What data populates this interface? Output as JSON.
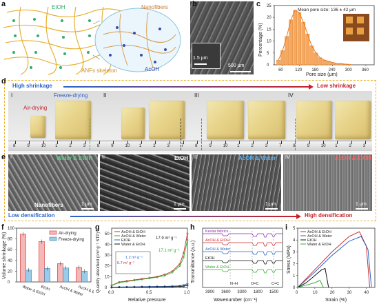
{
  "panels": {
    "a": {
      "label": "a",
      "etoh": "EtOH",
      "nanofibers": "Nanofibers",
      "skeleton": "ANFs skeleton",
      "acoh": "AcOH"
    },
    "b": {
      "label": "b",
      "inset_scale": "1.5 μm",
      "scale": "500 μm"
    },
    "c": {
      "label": "c",
      "title": "Mean pore size: 136 ± 42 μm",
      "ylabel": "Percentage (%)",
      "xlabel": "Pore size (μm)"
    },
    "d": {
      "label": "d",
      "high_shrinkage": "High shrinkage",
      "low_shrinkage": "Low shrinkage",
      "freeze": "Freeze-drying",
      "air": "Air-drying",
      "romans": [
        "I",
        "II",
        "III",
        "IV"
      ],
      "ruler_numbers": [
        "8",
        "9",
        "10",
        "1",
        "2",
        "3",
        "8",
        "9",
        "10",
        "1",
        "2",
        "3",
        "7",
        "8",
        "9",
        "10",
        "1",
        "2",
        "3",
        "7",
        "8",
        "9",
        "10",
        "1",
        "2",
        "3"
      ]
    },
    "e": {
      "label": "e",
      "tags": [
        "Water & EtOH",
        "EtOH",
        "AcOH & Water",
        "AcOH & EtOH"
      ],
      "romans": [
        "I",
        "II",
        "III",
        "IV"
      ],
      "nanofibers": "Nanofibers",
      "scale": "1 μm",
      "low_densification": "Low densification",
      "high_densification": "High densification"
    },
    "f": {
      "label": "f",
      "ylabel": "Volume shrinkage (%)",
      "legend": [
        "Air-drying",
        "Freeze-drying"
      ]
    },
    "g": {
      "label": "g",
      "ylabel": "Quantity absorbed (cm³ g⁻¹ STP)",
      "xlabel": "Relative pressure",
      "legend": [
        "AcOH & EtOH",
        "AcOH & Water",
        "EtOH",
        "Water & EtOH"
      ],
      "ann": [
        "17.9 m² g⁻¹",
        "17.1 m² g⁻¹",
        "1.2 m² g⁻¹",
        "0.7 m² g⁻¹"
      ]
    },
    "h": {
      "label": "h",
      "ylabel": "Transmittance (a.u.)",
      "xlabel": "Wavenumber (cm⁻¹)",
      "series": [
        "Kevlar fabrics",
        "AcOH & EtOH",
        "AcOH & Water",
        "EtOH",
        "Water & EtOH"
      ],
      "bands": [
        "N–H",
        "O=C",
        "C=C"
      ]
    },
    "i": {
      "label": "i",
      "ylabel": "Stress (MPa)",
      "xlabel": "Strain (%)",
      "legend": [
        "AcOH & EtOH",
        "AcOH & Water",
        "EtOH",
        "Water & EtOH"
      ]
    }
  },
  "colors": {
    "frame": "#e8b030",
    "blue": "#2a64c8",
    "red": "#c8202a",
    "air": "#e05050",
    "freeze": "#5aa0d8"
  },
  "chart_data": [
    {
      "type": "bar",
      "panel": "c",
      "xlabel": "Pore size (μm)",
      "ylabel": "Percentage (%)",
      "title": "Mean pore size: 136 ± 42 μm",
      "x": [
        45,
        60,
        75,
        90,
        105,
        120,
        135,
        150,
        165,
        180,
        195,
        210,
        225,
        240,
        255,
        270,
        285,
        300
      ],
      "values": [
        2,
        6,
        12,
        19,
        23,
        22,
        18,
        13,
        8,
        5,
        3,
        2,
        1.5,
        1,
        0.5,
        0.5,
        0.3,
        0.2
      ],
      "xticks": [
        "60",
        "120",
        "180",
        "240",
        "300",
        "360"
      ],
      "yticks": [
        "0",
        "5",
        "10",
        "15",
        "20",
        "25"
      ],
      "xlim": [
        30,
        390
      ],
      "ylim": [
        0,
        25
      ]
    },
    {
      "type": "bar",
      "panel": "f",
      "ylabel": "Volume shrinkage (%)",
      "categories": [
        "Water & EtOH",
        "EtOH",
        "AcOH & Water",
        "AcOH & EtOH"
      ],
      "series": [
        {
          "name": "Air-drying",
          "values": [
            89,
            75,
            34,
            27
          ]
        },
        {
          "name": "Freeze-drying",
          "values": [
            22,
            25,
            26,
            20
          ]
        }
      ],
      "yticks": [
        "0",
        "20",
        "40",
        "60",
        "80",
        "100"
      ],
      "ylim": [
        0,
        100
      ]
    },
    {
      "type": "line",
      "panel": "g",
      "xlabel": "Relative pressure",
      "ylabel": "Quantity absorbed (cm³ g⁻¹ STP)",
      "x": [
        0,
        0.1,
        0.2,
        0.3,
        0.4,
        0.5,
        0.6,
        0.7,
        0.8,
        0.9,
        0.95,
        1.0
      ],
      "series": [
        {
          "name": "AcOH & EtOH",
          "values": [
            2,
            5,
            6,
            7,
            8,
            9,
            10,
            12,
            15,
            22,
            32,
            50
          ]
        },
        {
          "name": "AcOH & Water",
          "values": [
            1.8,
            4.5,
            5.5,
            6.5,
            7.5,
            8.5,
            9.5,
            11,
            14,
            20,
            28,
            44
          ]
        },
        {
          "name": "EtOH",
          "values": [
            0.2,
            0.4,
            0.5,
            0.6,
            0.7,
            0.8,
            0.9,
            1.0,
            1.2,
            1.6,
            2.2,
            3.5
          ]
        },
        {
          "name": "Water & EtOH",
          "values": [
            0.1,
            0.2,
            0.3,
            0.35,
            0.4,
            0.45,
            0.5,
            0.6,
            0.7,
            0.9,
            1.2,
            2.0
          ]
        }
      ],
      "xticks": [
        "0.0",
        "0.5",
        "1.0"
      ],
      "yticks": [
        "0",
        "10",
        "20",
        "30",
        "40",
        "50"
      ],
      "xlim": [
        0,
        1
      ],
      "ylim": [
        0,
        55
      ]
    },
    {
      "type": "line",
      "panel": "h",
      "xlabel": "Wavenumber (cm⁻¹)",
      "ylabel": "Transmittance (a.u.)",
      "series": [
        {
          "name": "Kevlar fabrics"
        },
        {
          "name": "AcOH & EtOH"
        },
        {
          "name": "AcOH & Water"
        },
        {
          "name": "EtOH"
        },
        {
          "name": "Water & EtOH"
        }
      ],
      "xticks": [
        "3900",
        "3600",
        "3300",
        "1800",
        "1500"
      ]
    },
    {
      "type": "line",
      "panel": "i",
      "xlabel": "Strain (%)",
      "ylabel": "Stress (MPa)",
      "series": [
        {
          "name": "AcOH & EtOH",
          "x": [
            0,
            10,
            20,
            30,
            36,
            40,
            42
          ],
          "values": [
            0,
            1.5,
            3.0,
            4.3,
            4.7,
            3.5,
            0
          ]
        },
        {
          "name": "AcOH & Water",
          "x": [
            0,
            10,
            20,
            30,
            37,
            41,
            43
          ],
          "values": [
            0,
            1.3,
            2.7,
            3.9,
            4.3,
            3.2,
            0
          ]
        },
        {
          "name": "EtOH",
          "x": [
            0,
            5,
            10,
            14,
            16,
            18
          ],
          "values": [
            0,
            0.4,
            1.0,
            1.5,
            1.6,
            0
          ]
        },
        {
          "name": "Water & EtOH",
          "x": [
            0,
            5,
            10,
            13,
            15
          ],
          "values": [
            0,
            0.2,
            0.4,
            0.6,
            0
          ]
        }
      ],
      "xticks": [
        "0",
        "10",
        "20",
        "30",
        "40"
      ],
      "yticks": [
        "0",
        "1",
        "2",
        "3",
        "4",
        "5"
      ],
      "xlim": [
        0,
        45
      ],
      "ylim": [
        0,
        5
      ]
    }
  ]
}
